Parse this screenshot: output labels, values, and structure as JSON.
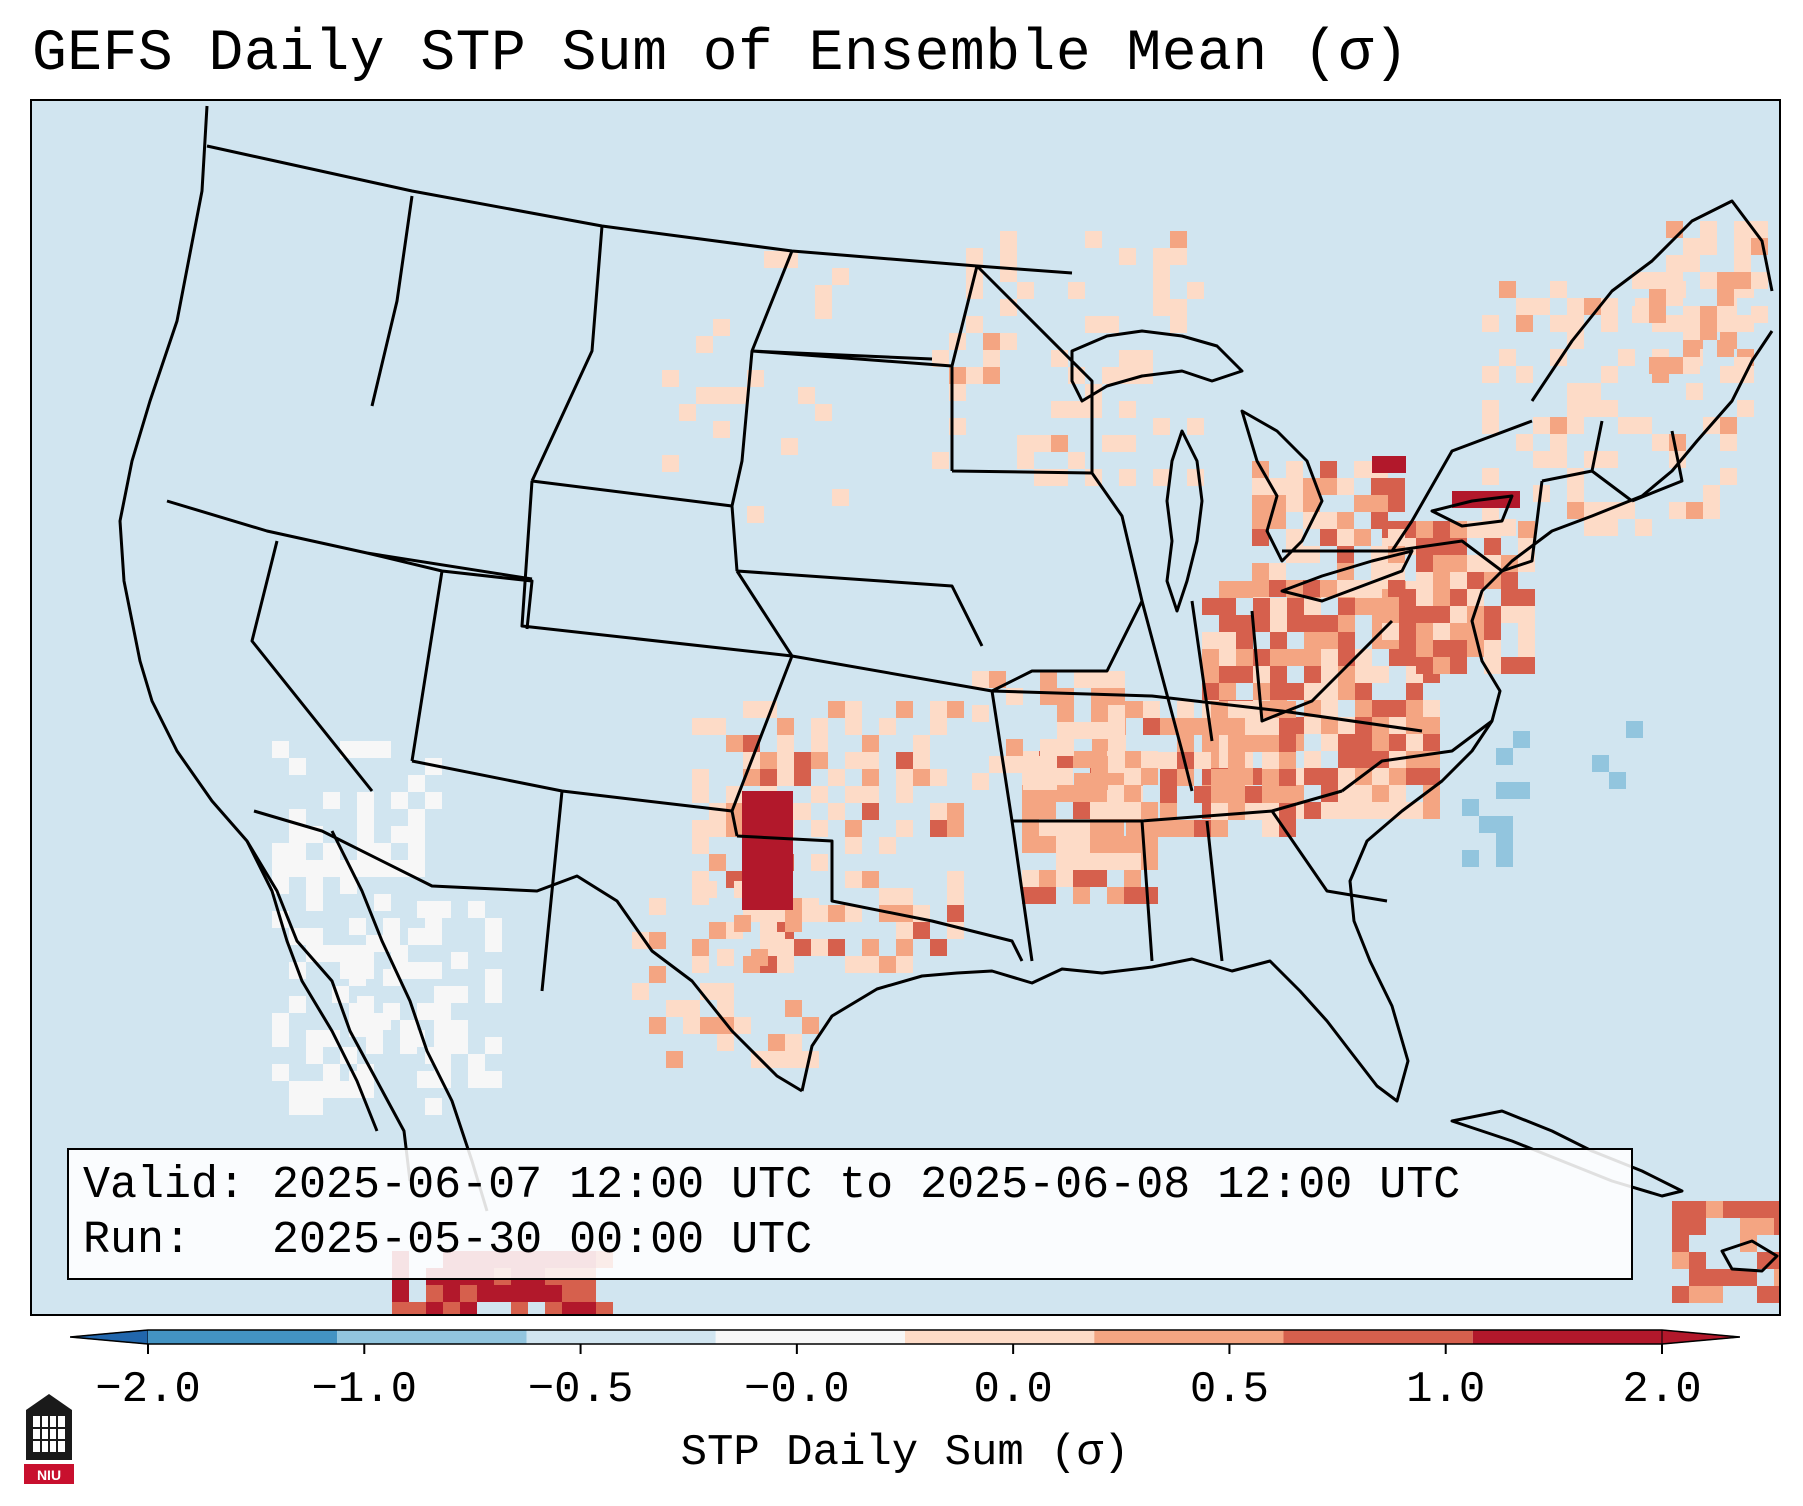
{
  "title": "GEFS Daily STP Sum of Ensemble Mean (σ)",
  "valid_box": {
    "valid_label": "Valid:",
    "valid_value": "2025-06-07 12:00 UTC to 2025-06-08 12:00 UTC",
    "run_label": "Run:",
    "run_value": "2025-05-30 00:00 UTC"
  },
  "colorbar": {
    "label": "STP Daily Sum (σ)",
    "ticks": [
      "−2.0",
      "−1.0",
      "−0.5",
      "−0.0",
      "0.0",
      "0.5",
      "1.0",
      "2.0"
    ],
    "colors": [
      "#2166ac",
      "#4393c3",
      "#92c5de",
      "#d1e5f0",
      "#f7f7f7",
      "#fddbc7",
      "#f4a582",
      "#d6604d",
      "#b2182b"
    ],
    "extend": "both"
  },
  "logo": {
    "text": "NIU",
    "colors": {
      "tower": "#1a1a1a",
      "badge": "#c8102e"
    }
  },
  "map": {
    "projection": "Lambert conformal over contiguous United States",
    "ocean_land_background": "#d1e5f0",
    "category_colors": {
      "strong_neg": "#4393c3",
      "weak_neg": "#92c5de",
      "near_zero": "#f7f7f7",
      "weak_pos": "#fddbc7",
      "moderate_pos": "#f4a582",
      "high_pos": "#d6604d",
      "extreme_pos": "#b2182b"
    },
    "stp_pattern": [
      {
        "region": "Ohio Valley / Appalachians / Pennsylvania",
        "category": "high_pos"
      },
      {
        "region": "Kentucky / Tennessee",
        "category": "moderate_pos"
      },
      {
        "region": "Texas / Oklahoma panhandles",
        "category": "extreme_pos"
      },
      {
        "region": "Southern Plains / Oklahoma / Kansas",
        "category": "weak_pos"
      },
      {
        "region": "Lake Ontario / New York",
        "category": "extreme_pos"
      },
      {
        "region": "Northeast / New England",
        "category": "weak_pos"
      },
      {
        "region": "Northern Plains / Dakotas",
        "category": "weak_pos"
      },
      {
        "region": "Northern Mexico",
        "category": "extreme_pos"
      },
      {
        "region": "Cuba / Caribbean",
        "category": "high_pos"
      },
      {
        "region": "Baja California / Sonora",
        "category": "near_zero"
      },
      {
        "region": "Carolina coast",
        "category": "weak_neg"
      }
    ]
  }
}
